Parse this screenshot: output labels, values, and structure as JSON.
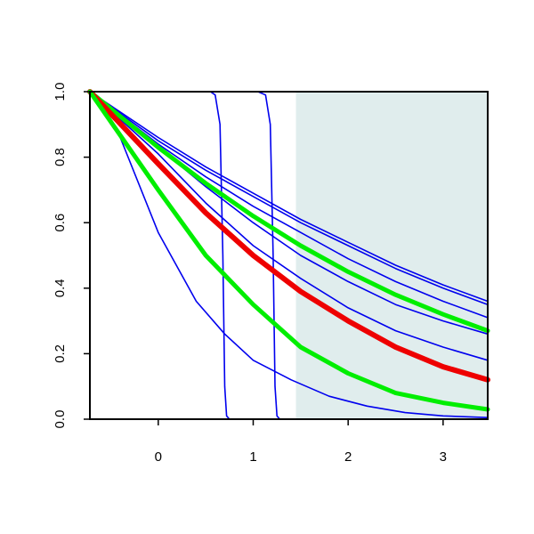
{
  "chart_data": {
    "type": "line",
    "title": "",
    "xlabel": "",
    "ylabel": "",
    "xlim": [
      -0.72,
      3.47
    ],
    "ylim": [
      0.0,
      1.0
    ],
    "x_ticks": [
      0,
      1,
      2,
      3
    ],
    "x_tick_labels": [
      "0",
      "1",
      "2",
      "3"
    ],
    "y_ticks": [
      0.0,
      0.2,
      0.4,
      0.6,
      0.8,
      1.0
    ],
    "y_tick_labels": [
      "0.0",
      "0.2",
      "0.4",
      "0.6",
      "0.8",
      "1.0"
    ],
    "grid": false,
    "legend": "none",
    "shaded_region": {
      "x_start": 1.45,
      "x_end": 3.47,
      "color": "#e0eded"
    },
    "series": [
      {
        "color": "#0000ee",
        "width": 1.6,
        "x": [
          -0.72,
          -0.4,
          0.0,
          0.4,
          0.7,
          1.0,
          1.4,
          1.8,
          2.2,
          2.6,
          3.0,
          3.47
        ],
        "y": [
          1.0,
          0.86,
          0.57,
          0.36,
          0.26,
          0.18,
          0.12,
          0.07,
          0.04,
          0.02,
          0.01,
          0.005
        ]
      },
      {
        "color": "#0000ee",
        "width": 1.6,
        "x": [
          -0.72,
          0.0,
          0.55,
          0.6,
          0.65,
          0.68,
          0.7,
          0.72,
          0.75,
          3.47
        ],
        "y": [
          1.0,
          1.0,
          1.0,
          0.99,
          0.9,
          0.5,
          0.1,
          0.01,
          0.0,
          0.0
        ]
      },
      {
        "color": "#0000ee",
        "width": 1.6,
        "x": [
          -0.72,
          0.0,
          1.05,
          1.13,
          1.18,
          1.21,
          1.23,
          1.25,
          1.28,
          3.47
        ],
        "y": [
          1.0,
          1.0,
          1.0,
          0.99,
          0.9,
          0.5,
          0.1,
          0.01,
          0.0,
          0.0
        ]
      },
      {
        "color": "#0000ee",
        "width": 1.6,
        "x": [
          -0.72,
          0.0,
          0.5,
          1.0,
          1.5,
          2.0,
          2.5,
          3.0,
          3.47
        ],
        "y": [
          1.0,
          0.84,
          0.74,
          0.65,
          0.57,
          0.49,
          0.42,
          0.36,
          0.31
        ]
      },
      {
        "color": "#0000ee",
        "width": 1.6,
        "x": [
          -0.72,
          0.0,
          0.5,
          1.0,
          1.5,
          2.0,
          2.5,
          3.0,
          3.47
        ],
        "y": [
          1.0,
          0.86,
          0.77,
          0.69,
          0.61,
          0.54,
          0.47,
          0.41,
          0.36
        ]
      },
      {
        "color": "#0000ee",
        "width": 1.6,
        "x": [
          -0.72,
          0.0,
          0.5,
          1.0,
          1.5,
          2.0,
          2.5,
          3.0,
          3.47
        ],
        "y": [
          1.0,
          0.85,
          0.76,
          0.68,
          0.6,
          0.53,
          0.46,
          0.4,
          0.35
        ]
      },
      {
        "color": "#0000ee",
        "width": 1.6,
        "x": [
          -0.72,
          0.0,
          0.5,
          1.0,
          1.5,
          2.0,
          2.5,
          3.0,
          3.47
        ],
        "y": [
          1.0,
          0.83,
          0.71,
          0.6,
          0.5,
          0.42,
          0.35,
          0.3,
          0.26
        ]
      },
      {
        "color": "#0000ee",
        "width": 1.6,
        "x": [
          -0.72,
          0.0,
          0.5,
          1.0,
          1.5,
          2.0,
          2.5,
          3.0,
          3.47
        ],
        "y": [
          1.0,
          0.81,
          0.66,
          0.53,
          0.43,
          0.34,
          0.27,
          0.22,
          0.18
        ]
      },
      {
        "color": "#00ee00",
        "width": 5,
        "x": [
          -0.72,
          0.0,
          0.5,
          1.0,
          1.5,
          2.0,
          2.5,
          3.0,
          3.47
        ],
        "y": [
          1.0,
          0.83,
          0.72,
          0.62,
          0.53,
          0.45,
          0.38,
          0.32,
          0.27
        ]
      },
      {
        "color": "#ee0000",
        "width": 6,
        "x": [
          -0.72,
          0.0,
          0.5,
          1.0,
          1.5,
          2.0,
          2.5,
          3.0,
          3.47
        ],
        "y": [
          1.0,
          0.78,
          0.63,
          0.5,
          0.39,
          0.3,
          0.22,
          0.16,
          0.12
        ]
      },
      {
        "color": "#00ee00",
        "width": 5,
        "x": [
          -0.72,
          0.0,
          0.5,
          1.0,
          1.5,
          2.0,
          2.5,
          3.0,
          3.47
        ],
        "y": [
          1.0,
          0.7,
          0.5,
          0.35,
          0.22,
          0.14,
          0.08,
          0.05,
          0.03
        ]
      }
    ]
  }
}
